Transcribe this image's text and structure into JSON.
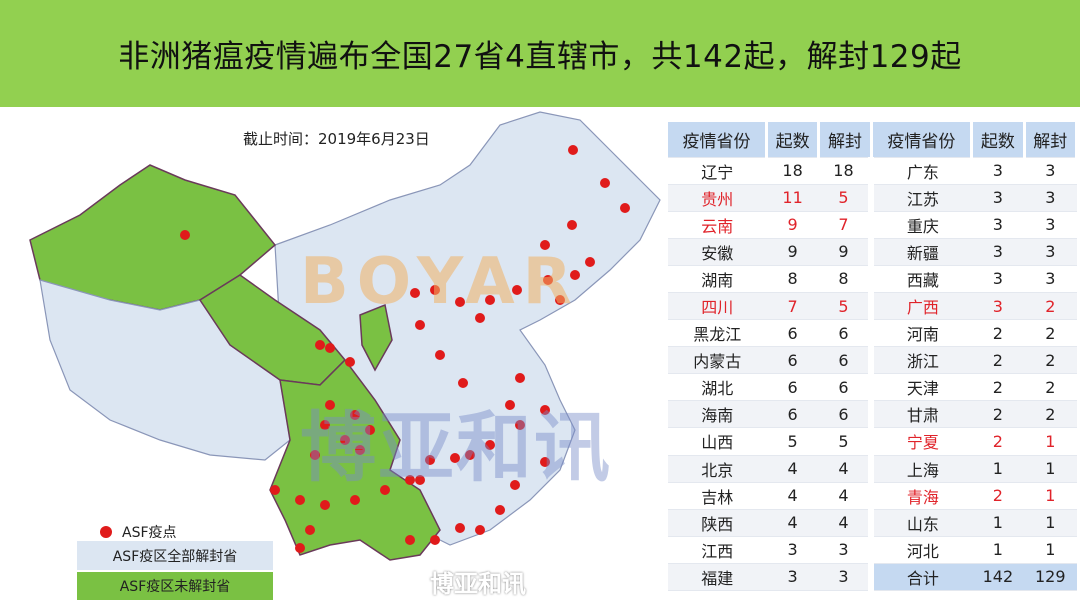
{
  "title": "非洲猪瘟疫情遍布全国27省4直辖市，共142起，解封129起",
  "date_label": "截止时间：2019年6月23日",
  "colors": {
    "header": "#92d050",
    "infected_unlifted": "#7ac143",
    "lifted": "#dce6f2",
    "outbreak_dot": "#e01b1b",
    "highlight_text": "#e0232a"
  },
  "legend": {
    "dot": "ASF疫点",
    "lifted": "ASF疫区全部解封省",
    "unlifted": "ASF疫区未解封省"
  },
  "table": {
    "headers": [
      "疫情省份",
      "起数",
      "解封",
      "疫情省份",
      "起数",
      "解封"
    ],
    "left": [
      {
        "p": "辽宁",
        "n": "18",
        "u": "18"
      },
      {
        "p": "贵州",
        "n": "11",
        "u": "5",
        "red": true
      },
      {
        "p": "云南",
        "n": "9",
        "u": "7",
        "red": true
      },
      {
        "p": "安徽",
        "n": "9",
        "u": "9"
      },
      {
        "p": "湖南",
        "n": "8",
        "u": "8"
      },
      {
        "p": "四川",
        "n": "7",
        "u": "5",
        "red": true
      },
      {
        "p": "黑龙江",
        "n": "6",
        "u": "6"
      },
      {
        "p": "内蒙古",
        "n": "6",
        "u": "6"
      },
      {
        "p": "湖北",
        "n": "6",
        "u": "6"
      },
      {
        "p": "海南",
        "n": "6",
        "u": "6"
      },
      {
        "p": "山西",
        "n": "5",
        "u": "5"
      },
      {
        "p": "北京",
        "n": "4",
        "u": "4"
      },
      {
        "p": "吉林",
        "n": "4",
        "u": "4"
      },
      {
        "p": "陕西",
        "n": "4",
        "u": "4"
      },
      {
        "p": "江西",
        "n": "3",
        "u": "3"
      },
      {
        "p": "福建",
        "n": "3",
        "u": "3"
      }
    ],
    "right": [
      {
        "p": "广东",
        "n": "3",
        "u": "3"
      },
      {
        "p": "江苏",
        "n": "3",
        "u": "3"
      },
      {
        "p": "重庆",
        "n": "3",
        "u": "3"
      },
      {
        "p": "新疆",
        "n": "3",
        "u": "3"
      },
      {
        "p": "西藏",
        "n": "3",
        "u": "3"
      },
      {
        "p": "广西",
        "n": "3",
        "u": "2",
        "red": true
      },
      {
        "p": "河南",
        "n": "2",
        "u": "2"
      },
      {
        "p": "浙江",
        "n": "2",
        "u": "2"
      },
      {
        "p": "天津",
        "n": "2",
        "u": "2"
      },
      {
        "p": "甘肃",
        "n": "2",
        "u": "2"
      },
      {
        "p": "宁夏",
        "n": "2",
        "u": "1",
        "red": true
      },
      {
        "p": "上海",
        "n": "1",
        "u": "1"
      },
      {
        "p": "青海",
        "n": "2",
        "u": "1",
        "red": true
      },
      {
        "p": "山东",
        "n": "1",
        "u": "1"
      },
      {
        "p": "河北",
        "n": "1",
        "u": "1"
      },
      {
        "p": "合计",
        "n": "142",
        "u": "129"
      }
    ]
  },
  "watermark": {
    "latin": "BOYAR",
    "chinese": "博亚和讯",
    "wechat": "博亚和讯"
  }
}
